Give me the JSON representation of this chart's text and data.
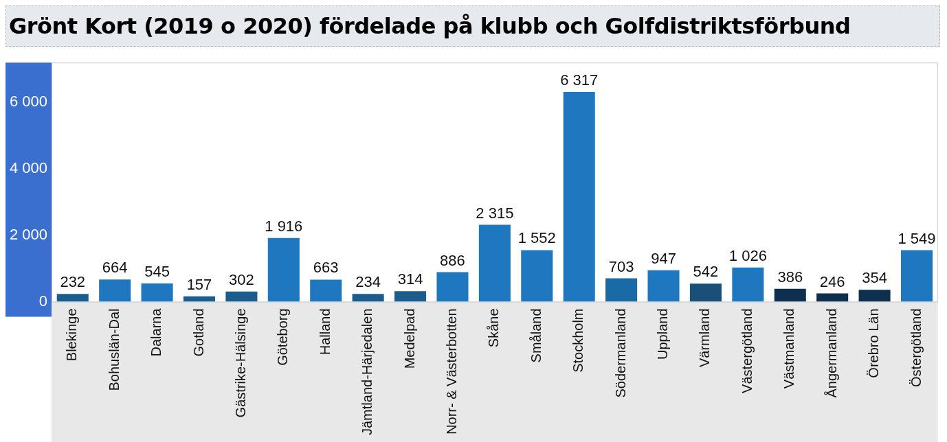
{
  "chart_data": {
    "type": "bar",
    "title": "Grönt Kort (2019 o 2020) fördelade på klubb och Golfdistriktsförbund",
    "categories": [
      "Blekinge",
      "Bohuslän-Dal",
      "Dalarna",
      "Gotland",
      "Gästrike-Hälsinge",
      "Göteborg",
      "Halland",
      "Jämtland-Härjedalen",
      "Medelpad",
      "Norr- & Västerbotten",
      "Skåne",
      "Småland",
      "Stockholm",
      "Södermanland",
      "Uppland",
      "Värmland",
      "Västergötland",
      "Västmanland",
      "Ångermanland",
      "Örebro Län",
      "Östergötland"
    ],
    "values": [
      232,
      664,
      545,
      157,
      302,
      1916,
      663,
      234,
      314,
      886,
      2315,
      1552,
      6317,
      703,
      947,
      542,
      1026,
      386,
      246,
      354,
      1549
    ],
    "value_labels": [
      "232",
      "664",
      "545",
      "157",
      "302",
      "1 916",
      "663",
      "234",
      "314",
      "886",
      "2 315",
      "1 552",
      "6 317",
      "703",
      "947",
      "542",
      "1 026",
      "386",
      "246",
      "354",
      "1 549"
    ],
    "colors": [
      "#1b5e8e",
      "#1f77c0",
      "#1f77c0",
      "#1b5e8e",
      "#1b5e8e",
      "#1f77c0",
      "#1f77c0",
      "#1b5e8e",
      "#1b5e8e",
      "#1f77c0",
      "#1f77c0",
      "#1f77c0",
      "#1f77c0",
      "#1a6aa5",
      "#1f77c0",
      "#1a4f7a",
      "#1f77c0",
      "#0f2f4f",
      "#0f2f4f",
      "#0f2f4f",
      "#1f77c0"
    ],
    "ylim": [
      0,
      7200
    ],
    "yticks": [
      {
        "value": 0,
        "label": "0"
      },
      {
        "value": 2000,
        "label": "2 000"
      },
      {
        "value": 4000,
        "label": "4 000"
      },
      {
        "value": 6000,
        "label": "6 000"
      }
    ],
    "grid": false,
    "legend": false
  }
}
